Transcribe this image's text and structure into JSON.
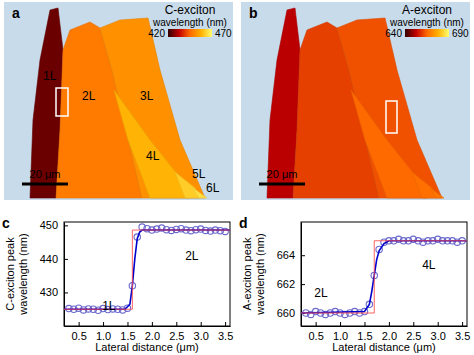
{
  "chart_data": [
    {
      "type": "map",
      "panel_label": "a",
      "title": "C-exciton",
      "colorbar": {
        "label": "wavelength (nm)",
        "range": [
          420,
          470
        ],
        "ticks": [
          420,
          470
        ],
        "colors": [
          "#300000",
          "#c00000",
          "#ff6a00",
          "#ffb000",
          "#ffff70"
        ]
      },
      "regions": [
        {
          "label": "1L",
          "value": 425
        },
        {
          "label": "2L",
          "value": 448
        },
        {
          "label": "3L",
          "value": 452
        },
        {
          "label": "4L",
          "value": 458
        },
        {
          "label": "5L",
          "value": 462
        },
        {
          "label": "6L",
          "value": 465
        }
      ],
      "scale_bar": "20 μm"
    },
    {
      "type": "map",
      "panel_label": "b",
      "title": "A-exciton",
      "colorbar": {
        "label": "wavelength (nm)",
        "range": [
          640,
          690
        ],
        "ticks": [
          640,
          690
        ],
        "colors": [
          "#300000",
          "#c00000",
          "#ff6a00",
          "#ffb000",
          "#ffff70"
        ]
      },
      "regions": [
        {
          "value": 652
        },
        {
          "value": 660
        },
        {
          "value": 662
        },
        {
          "value": 665
        },
        {
          "value": 666
        },
        {
          "value": 667
        }
      ],
      "scale_bar": "20 μm"
    },
    {
      "type": "line",
      "panel_label": "c",
      "x_label": "Lateral distance (μm)",
      "y_label": [
        "C-exciton peak",
        "wavelength (nm)"
      ],
      "xlim": [
        0.2,
        3.6
      ],
      "ylim": [
        420,
        451
      ],
      "xticks": [
        0.5,
        {
          "value": 1,
          "label": "1.0"
        },
        1.5,
        {
          "value": 2,
          "label": "2.0"
        },
        2.5,
        {
          "value": 3,
          "label": "3.0"
        },
        3.5
      ],
      "yticks": [
        430,
        440,
        450
      ],
      "annotations": [
        "1L",
        "2L"
      ],
      "series": [
        {
          "type": "scatter",
          "marker": "circle",
          "color": "#6a6acd",
          "x": [
            0.3,
            0.4,
            0.5,
            0.6,
            0.7,
            0.8,
            0.9,
            1.0,
            1.1,
            1.2,
            1.3,
            1.4,
            1.5,
            1.6,
            1.7,
            1.8,
            1.9,
            2.0,
            2.1,
            2.2,
            2.3,
            2.4,
            2.5,
            2.6,
            2.7,
            2.8,
            2.9,
            3.0,
            3.1,
            3.2,
            3.3,
            3.4,
            3.5
          ],
          "values": [
            425.2,
            425.0,
            425.3,
            424.8,
            425.1,
            425.0,
            424.7,
            425.2,
            424.9,
            425.1,
            425.0,
            424.8,
            425.3,
            432.0,
            446.5,
            449.5,
            449.0,
            448.6,
            448.9,
            449.2,
            448.7,
            448.5,
            448.8,
            449.0,
            448.6,
            448.4,
            448.7,
            448.9,
            448.5,
            448.3,
            448.6,
            448.4,
            448.2
          ]
        },
        {
          "type": "line",
          "color": "#0000cc",
          "x": [
            0.2,
            1.45,
            1.55,
            1.6,
            1.65,
            1.7,
            1.75,
            1.8,
            3.6
          ],
          "values": [
            425,
            425,
            426.5,
            432,
            440,
            446,
            448,
            448.6,
            448.6
          ]
        },
        {
          "type": "line",
          "color": "#ff5050",
          "x": [
            0.2,
            1.6,
            1.6,
            3.6
          ],
          "values": [
            425,
            425,
            448.6,
            448.6
          ]
        }
      ]
    },
    {
      "type": "line",
      "panel_label": "d",
      "x_label": "Lateral distance (μm)",
      "y_label": [
        "A-exciton peak",
        "wavelength (nm)"
      ],
      "xlim": [
        0.2,
        3.6
      ],
      "ylim": [
        659.1,
        666.3
      ],
      "xticks": [
        0.5,
        {
          "value": 1,
          "label": "1.0"
        },
        1.5,
        {
          "value": 2,
          "label": "2.0"
        },
        2.5,
        {
          "value": 3,
          "label": "3.0"
        },
        3.5
      ],
      "yticks": [
        660,
        662,
        664
      ],
      "annotations": [
        "2L",
        "4L"
      ],
      "series": [
        {
          "type": "scatter",
          "marker": "circle",
          "color": "#6a6acd",
          "x": [
            0.3,
            0.4,
            0.5,
            0.6,
            0.7,
            0.8,
            0.9,
            1.0,
            1.1,
            1.2,
            1.3,
            1.4,
            1.5,
            1.6,
            1.7,
            1.8,
            1.9,
            2.0,
            2.1,
            2.2,
            2.3,
            2.4,
            2.5,
            2.6,
            2.7,
            2.8,
            2.9,
            3.0,
            3.1,
            3.2,
            3.3,
            3.4,
            3.5
          ],
          "values": [
            660.0,
            659.9,
            660.1,
            660.0,
            659.9,
            660.0,
            660.1,
            660.0,
            659.9,
            660.0,
            660.1,
            660.0,
            660.1,
            660.6,
            662.6,
            664.4,
            664.9,
            665.0,
            665.0,
            665.1,
            665.0,
            665.0,
            665.1,
            665.0,
            664.9,
            665.0,
            665.0,
            665.1,
            665.0,
            665.0,
            665.0,
            664.9,
            665.0
          ]
        },
        {
          "type": "line",
          "color": "#0000cc",
          "x": [
            0.2,
            1.5,
            1.6,
            1.65,
            1.7,
            1.75,
            1.8,
            1.9,
            2.0,
            3.6
          ],
          "values": [
            660,
            660.1,
            660.6,
            661.5,
            662.6,
            663.7,
            664.3,
            664.8,
            665,
            665
          ]
        },
        {
          "type": "line",
          "color": "#ff5050",
          "x": [
            0.2,
            1.7,
            1.7,
            3.6
          ],
          "values": [
            660,
            660,
            665,
            665
          ]
        }
      ]
    }
  ]
}
